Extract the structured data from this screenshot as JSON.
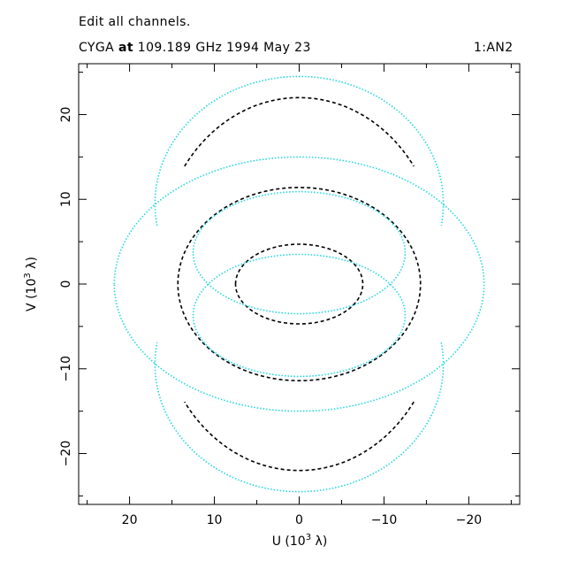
{
  "header": {
    "line1": "Edit all channels.",
    "source": "CYGA",
    "at_word": "at",
    "freq_date": "109.189 GHz 1994 May 23",
    "baseline": "1:AN2"
  },
  "chart_data": {
    "type": "scatter",
    "title": "",
    "xlabel": "U (10",
    "xlabel_sup": "3",
    "xlabel_end": " λ)",
    "ylabel": "V (10",
    "ylabel_sup": "3",
    "ylabel_end": " λ)",
    "xlim": [
      26,
      -26
    ],
    "ylim": [
      -26,
      26
    ],
    "x_ticks": [
      20,
      10,
      0,
      -10,
      -20
    ],
    "x_tick_labels": [
      "20",
      "10",
      "0",
      "−10",
      "−20"
    ],
    "y_ticks": [
      20,
      10,
      0,
      -10,
      -20
    ],
    "y_tick_labels": [
      "20",
      "10",
      "0",
      "−10",
      "−20"
    ],
    "grid": false,
    "colors": {
      "black_series": "#000000",
      "cyan_series": "#22d8e0"
    },
    "series": [
      {
        "color": "#000000",
        "tracks": [
          {
            "cx": 0,
            "cy": 0,
            "a": 7.5,
            "b": 4.7
          },
          {
            "cx": 0,
            "cy": 0,
            "a": 14.3,
            "b": 11.4
          },
          {
            "cx": 0,
            "cy": 3.0,
            "a": 16.5,
            "b": 19.0,
            "t0": 35,
            "t1": 145
          },
          {
            "cx": 0,
            "cy": -3.0,
            "a": 16.5,
            "b": 19.0,
            "t0": 215,
            "t1": 325
          }
        ]
      },
      {
        "color": "#22d8e0",
        "tracks": [
          {
            "cx": 0,
            "cy": 9.5,
            "a": 17.0,
            "b": 15.0,
            "t0": -10,
            "t1": 190
          },
          {
            "cx": 0,
            "cy": -9.5,
            "a": 17.0,
            "b": 15.0,
            "t0": 170,
            "t1": 370
          },
          {
            "cx": 0,
            "cy": 0,
            "a": 21.8,
            "b": 15.0
          },
          {
            "cx": 0,
            "cy": 3.7,
            "a": 12.5,
            "b": 7.2
          },
          {
            "cx": 0,
            "cy": -3.7,
            "a": 12.5,
            "b": 7.2
          }
        ]
      }
    ]
  }
}
